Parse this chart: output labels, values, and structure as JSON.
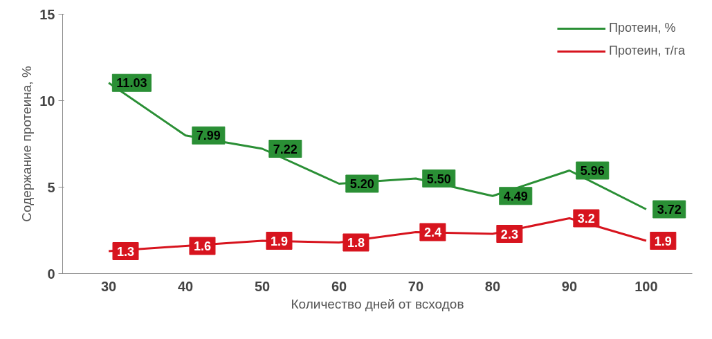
{
  "chart_data": {
    "type": "line",
    "xlabel": "Количество дней от всходов",
    "ylabel": "Содержание протеина, %",
    "categories": [
      "30",
      "40",
      "50",
      "60",
      "70",
      "80",
      "90",
      "100"
    ],
    "ylim": [
      0,
      15
    ],
    "yticks": [
      0,
      5,
      10,
      15
    ],
    "grid": false,
    "legend": "top right",
    "data_labels": true,
    "series": [
      {
        "name": "Протеин, %",
        "color": "#2a8f35",
        "values": [
          11.03,
          7.99,
          7.22,
          5.2,
          5.5,
          4.49,
          5.96,
          3.72
        ],
        "value_labels": [
          "11.03",
          "7.99",
          "7.22",
          "5.20",
          "5.50",
          "4.49",
          "5.96",
          "3.72"
        ]
      },
      {
        "name": "Протеин, т/га",
        "color": "#d7141e",
        "values": [
          1.3,
          1.6,
          1.9,
          1.8,
          2.4,
          2.3,
          3.2,
          1.9
        ],
        "value_labels": [
          "1.3",
          "1.6",
          "1.9",
          "1.8",
          "2.4",
          "2.3",
          "3.2",
          "1.9"
        ]
      }
    ]
  }
}
